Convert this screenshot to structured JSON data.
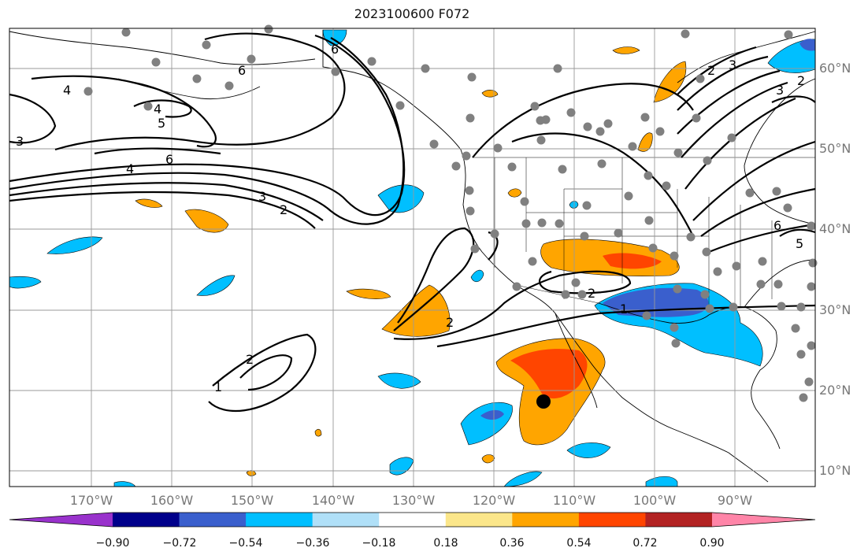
{
  "title": "2023100600 F072",
  "map": {
    "lat_labels": [
      "60°N",
      "50°N",
      "40°N",
      "30°N",
      "20°N",
      "10°N"
    ],
    "lon_labels": [
      "170°W",
      "160°W",
      "150°W",
      "140°W",
      "130°W",
      "120°W",
      "110°W",
      "100°W",
      "90°W"
    ],
    "contour_labels": [
      "6",
      "5",
      "4",
      "3",
      "2",
      "1"
    ],
    "marker": "current-position-dot"
  },
  "colorbar": {
    "colors": [
      "#9932cc",
      "#00008b",
      "#3a5fcd",
      "#00bfff",
      "#b0e0f8",
      "#ffffff",
      "#fbe68a",
      "#ffa500",
      "#ff4500",
      "#b22222",
      "#ff85a8"
    ],
    "ticks": [
      "−0.90",
      "−0.72",
      "−0.54",
      "−0.36",
      "−0.18",
      "0.18",
      "0.36",
      "0.54",
      "0.72",
      "0.90"
    ]
  }
}
